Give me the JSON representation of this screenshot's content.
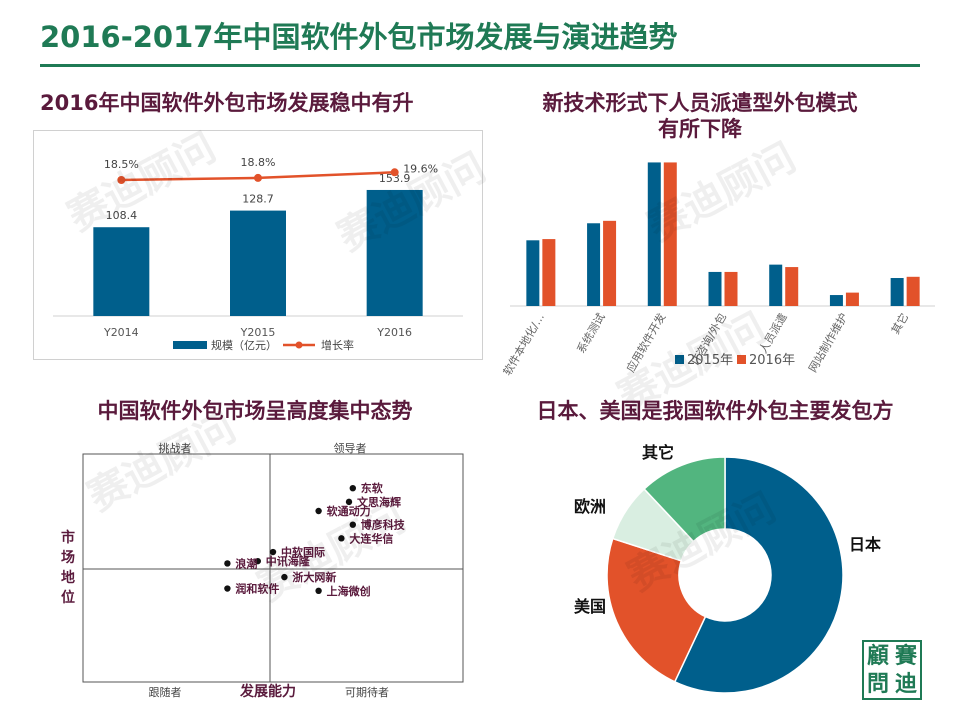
{
  "page": {
    "title": "2016-2017年中国软件外包市场发展与演进趋势"
  },
  "colors": {
    "blue": "#005f8c",
    "orange": "#e2522a",
    "light_green": "#d9eee1",
    "green": "#52b57f",
    "title_green": "#1f7a55",
    "maroon": "#5a1a3c"
  },
  "chart_data": [
    {
      "id": "market-size",
      "type": "bar",
      "title": "2016年中国软件外包市场发展稳中有升",
      "categories": [
        "Y2014",
        "Y2015",
        "Y2016"
      ],
      "series": [
        {
          "name": "规模（亿元）",
          "type": "bar",
          "values": [
            108.4,
            128.7,
            153.9
          ],
          "labels": [
            "108.4",
            "128.7",
            "153.9"
          ]
        },
        {
          "name": "增长率",
          "type": "line",
          "values": [
            18.5,
            18.8,
            19.6
          ],
          "labels": [
            "18.5%",
            "18.8%",
            "19.6%"
          ]
        }
      ],
      "ylim": [
        0,
        180
      ],
      "legend": "bottom"
    },
    {
      "id": "tech-form",
      "type": "bar",
      "title_line1": "新技术形式下人员派遣型外包模式",
      "title_line2": "有所下降",
      "categories": [
        "软件本地化/…",
        "系统测试",
        "应用软件开发",
        "IT咨询/外包",
        "人员派遣",
        "网站制作维护",
        "其它"
      ],
      "series": [
        {
          "name": "2015年",
          "values": [
            27,
            34,
            59,
            14,
            17,
            4.5,
            11.5
          ]
        },
        {
          "name": "2016年",
          "values": [
            27.5,
            35,
            59,
            14,
            16,
            5.5,
            12
          ]
        }
      ],
      "ylim": [
        0,
        60
      ],
      "legend": "bottom"
    },
    {
      "id": "concentration",
      "type": "scatter",
      "title": "中国软件外包市场呈高度集中态势",
      "xlabel": "发展能力",
      "ylabel": "市场地位",
      "quadrants": {
        "top_left": "挑战者",
        "top_right": "领导者",
        "bottom_left": "跟随者",
        "bottom_right": "可期待者"
      },
      "xlim": [
        0,
        10
      ],
      "ylim": [
        0,
        10
      ],
      "points": [
        {
          "name": "东软",
          "x": 7.1,
          "y": 8.5
        },
        {
          "name": "文思海辉",
          "x": 7.0,
          "y": 7.9
        },
        {
          "name": "软通动力",
          "x": 6.2,
          "y": 7.5
        },
        {
          "name": "博彦科技",
          "x": 7.1,
          "y": 6.9
        },
        {
          "name": "大连华信",
          "x": 6.8,
          "y": 6.3
        },
        {
          "name": "中软国际",
          "x": 5.0,
          "y": 5.7
        },
        {
          "name": "中讯海隆",
          "x": 4.6,
          "y": 5.3
        },
        {
          "name": "浪潮",
          "x": 3.8,
          "y": 5.2
        },
        {
          "name": "浙大网新",
          "x": 5.3,
          "y": 4.6
        },
        {
          "name": "润和软件",
          "x": 3.8,
          "y": 4.1
        },
        {
          "name": "上海微创",
          "x": 6.2,
          "y": 4.0
        }
      ]
    },
    {
      "id": "origin",
      "type": "pie",
      "title": "日本、美国是我国软件外包主要发包方",
      "labels": [
        "日本",
        "美国",
        "欧洲",
        "其它"
      ],
      "values": [
        57,
        23,
        8,
        12
      ],
      "colors": [
        "#005f8c",
        "#e2522a",
        "#d9eee1",
        "#52b57f"
      ],
      "donut": true
    }
  ],
  "watermark": "赛迪顾问",
  "logo": {
    "chars": [
      "顧",
      "賽",
      "問",
      "迪"
    ]
  }
}
